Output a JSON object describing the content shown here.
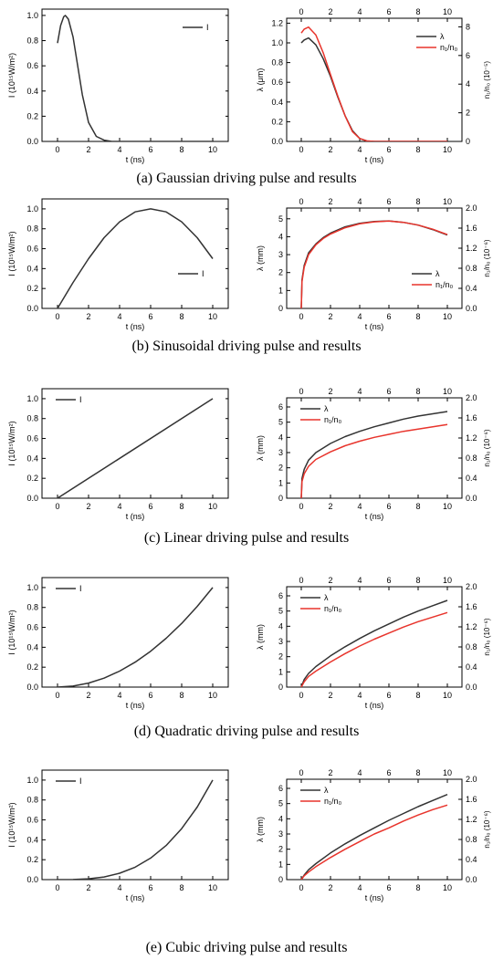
{
  "colors": {
    "lambda": "#333333",
    "ratio": "#e8342c",
    "intensity": "#333333",
    "axis": "#000000"
  },
  "rows": [
    {
      "id": "a",
      "caption": "(a) Gaussian driving pulse and results",
      "left": {
        "type": "line",
        "xlabel": "t (ns)",
        "ylabel": "I (10¹⁵W/m²)",
        "xlim": [
          -1,
          11
        ],
        "ylim": [
          0,
          1.05
        ],
        "xticks": [
          "0",
          "2",
          "4",
          "6",
          "8",
          "10"
        ],
        "yticks": [
          "0.0",
          "0.2",
          "0.4",
          "0.6",
          "0.8",
          "1.0"
        ],
        "legend": [
          "I"
        ],
        "legend_position": "top-right",
        "series": [
          {
            "name": "I",
            "x": [
              0,
              0.2,
              0.4,
              0.5,
              0.7,
              1.0,
              1.3,
              1.6,
              2.0,
              2.5,
              3.0,
              3.5,
              4.0,
              10.0
            ],
            "y": [
              0.78,
              0.92,
              0.99,
              1.0,
              0.97,
              0.83,
              0.6,
              0.37,
              0.15,
              0.04,
              0.01,
              0.0,
              0.0,
              0.0
            ]
          }
        ]
      },
      "right": {
        "type": "line",
        "xlabel": "t (ns)",
        "ylabel": "λ (μm)",
        "y2label": "n₁/n₀ (10⁻⁵)",
        "xlim": [
          -1,
          11
        ],
        "ylim": [
          0,
          1.25
        ],
        "y2lim": [
          0,
          8.6
        ],
        "xticks": [
          "0",
          "2",
          "4",
          "6",
          "8",
          "10"
        ],
        "yticks": [
          "0.0",
          "0.2",
          "0.4",
          "0.6",
          "0.8",
          "1.0",
          "1.2"
        ],
        "y2ticks": [
          "0",
          "2",
          "4",
          "6",
          "8"
        ],
        "legend": [
          "λ",
          "n₁/n₀"
        ],
        "legend_position": "top-right",
        "series": [
          {
            "name": "λ",
            "x": [
              0,
              0.2,
              0.5,
              1.0,
              1.5,
              2.0,
              2.5,
              3.0,
              3.5,
              4.0,
              4.5,
              5.0,
              6.0,
              10.0
            ],
            "y": [
              1.0,
              1.03,
              1.05,
              0.98,
              0.84,
              0.66,
              0.45,
              0.26,
              0.11,
              0.03,
              0.005,
              0.0,
              0.0,
              0.0
            ]
          },
          {
            "name": "n₁/n₀",
            "x": [
              0,
              0.2,
              0.5,
              1.0,
              1.5,
              2.0,
              2.5,
              3.0,
              3.5,
              4.0,
              4.5,
              5.0,
              6.0,
              10.0
            ],
            "y": [
              1.1,
              1.14,
              1.16,
              1.08,
              0.9,
              0.68,
              0.46,
              0.26,
              0.1,
              0.03,
              0.005,
              0.0,
              0.0,
              0.0
            ]
          }
        ]
      }
    },
    {
      "id": "b",
      "caption": "(b) Sinusoidal driving pulse and results",
      "left": {
        "type": "line",
        "xlabel": "t (ns)",
        "ylabel": "I (10¹⁵W/m²)",
        "xlim": [
          -1,
          11
        ],
        "ylim": [
          0,
          1.1
        ],
        "xticks": [
          "0",
          "2",
          "4",
          "6",
          "8",
          "10"
        ],
        "yticks": [
          "0.0",
          "0.2",
          "0.4",
          "0.6",
          "0.8",
          "1.0"
        ],
        "legend": [
          "I"
        ],
        "legend_position": "bottom-right",
        "series": [
          {
            "name": "I",
            "x": [
              0,
              1,
              2,
              3,
              4,
              5,
              6,
              7,
              8,
              9,
              10
            ],
            "y": [
              0.0,
              0.26,
              0.5,
              0.71,
              0.87,
              0.97,
              1.0,
              0.97,
              0.87,
              0.71,
              0.5
            ]
          }
        ]
      },
      "right": {
        "type": "line",
        "xlabel": "t (ns)",
        "ylabel": "λ (mm)",
        "y2label": "n₁/n₀ (10⁻⁶)",
        "xlim": [
          -1,
          11
        ],
        "ylim": [
          0,
          5.6
        ],
        "y2lim": [
          0,
          2.0
        ],
        "xticks": [
          "0",
          "2",
          "4",
          "6",
          "8",
          "10"
        ],
        "yticks": [
          "0",
          "1",
          "2",
          "3",
          "4",
          "5"
        ],
        "y2ticks": [
          "0.0",
          "0.4",
          "0.8",
          "1.2",
          "1.6",
          "2.0"
        ],
        "legend": [
          "λ",
          "n₁/n₀"
        ],
        "legend_position": "bottom-right",
        "series": [
          {
            "name": "λ",
            "x": [
              0,
              0.05,
              0.2,
              0.5,
              1,
              1.5,
              2,
              3,
              4,
              5,
              6,
              7,
              8,
              9,
              10
            ],
            "y": [
              0,
              1.6,
              2.4,
              3.1,
              3.6,
              3.95,
              4.2,
              4.55,
              4.75,
              4.85,
              4.88,
              4.8,
              4.65,
              4.4,
              4.1
            ]
          },
          {
            "name": "n₁/n₀",
            "x": [
              0,
              0.05,
              0.2,
              0.5,
              1,
              1.5,
              2,
              3,
              4,
              5,
              6,
              7,
              8,
              9,
              10
            ],
            "y": [
              0,
              1.5,
              2.3,
              3.0,
              3.55,
              3.9,
              4.15,
              4.5,
              4.72,
              4.83,
              4.87,
              4.8,
              4.65,
              4.42,
              4.12
            ]
          }
        ]
      }
    },
    {
      "id": "c",
      "caption": "(c) Linear driving pulse and results",
      "left": {
        "type": "line",
        "xlabel": "t (ns)",
        "ylabel": "I (10¹⁵W/m²)",
        "xlim": [
          -1,
          11
        ],
        "ylim": [
          0,
          1.1
        ],
        "xticks": [
          "0",
          "2",
          "4",
          "6",
          "8",
          "10"
        ],
        "yticks": [
          "0.0",
          "0.2",
          "0.4",
          "0.6",
          "0.8",
          "1.0"
        ],
        "legend": [
          "I"
        ],
        "legend_position": "top-left",
        "series": [
          {
            "name": "I",
            "x": [
              0,
              10
            ],
            "y": [
              0,
              1.0
            ]
          }
        ]
      },
      "right": {
        "type": "line",
        "xlabel": "t (ns)",
        "ylabel": "λ (mm)",
        "y2label": "n₁/n₀ (10⁻⁶)",
        "xlim": [
          -1,
          11
        ],
        "ylim": [
          0,
          6.6
        ],
        "y2lim": [
          0,
          2.0
        ],
        "xticks": [
          "0",
          "2",
          "4",
          "6",
          "8",
          "10"
        ],
        "yticks": [
          "0",
          "1",
          "2",
          "3",
          "4",
          "5",
          "6"
        ],
        "y2ticks": [
          "0.0",
          "0.4",
          "0.8",
          "1.2",
          "1.6",
          "2.0"
        ],
        "legend": [
          "λ",
          "n₁/n₀"
        ],
        "legend_position": "top-left",
        "series": [
          {
            "name": "λ",
            "x": [
              0,
              0.05,
              0.2,
              0.5,
              1,
              2,
              3,
              4,
              5,
              6,
              7,
              8,
              9,
              10
            ],
            "y": [
              0,
              1.3,
              1.9,
              2.5,
              3.0,
              3.6,
              4.05,
              4.4,
              4.7,
              4.95,
              5.2,
              5.4,
              5.55,
              5.7
            ]
          },
          {
            "name": "n₁/n₀",
            "x": [
              0,
              0.05,
              0.2,
              0.5,
              1,
              2,
              3,
              4,
              5,
              6,
              7,
              8,
              9,
              10
            ],
            "y": [
              0,
              1.1,
              1.6,
              2.1,
              2.55,
              3.05,
              3.45,
              3.75,
              4.0,
              4.2,
              4.4,
              4.55,
              4.7,
              4.85
            ]
          }
        ]
      }
    },
    {
      "id": "d",
      "caption": "(d) Quadratic driving pulse and results",
      "left": {
        "type": "line",
        "xlabel": "t (ns)",
        "ylabel": "I (10¹⁵W/m²)",
        "xlim": [
          -1,
          11
        ],
        "ylim": [
          0,
          1.1
        ],
        "xticks": [
          "0",
          "2",
          "4",
          "6",
          "8",
          "10"
        ],
        "yticks": [
          "0.0",
          "0.2",
          "0.4",
          "0.6",
          "0.8",
          "1.0"
        ],
        "legend": [
          "I"
        ],
        "legend_position": "top-left",
        "series": [
          {
            "name": "I",
            "x": [
              0,
              1,
              2,
              3,
              4,
              5,
              6,
              7,
              8,
              9,
              10
            ],
            "y": [
              0,
              0.01,
              0.04,
              0.09,
              0.16,
              0.25,
              0.36,
              0.49,
              0.64,
              0.81,
              1.0
            ]
          }
        ]
      },
      "right": {
        "type": "line",
        "xlabel": "t (ns)",
        "ylabel": "λ (mm)",
        "y2label": "n₁/n₀ (10⁻⁶)",
        "xlim": [
          -1,
          11
        ],
        "ylim": [
          0,
          6.6
        ],
        "y2lim": [
          0,
          2.0
        ],
        "xticks": [
          "0",
          "2",
          "4",
          "6",
          "8",
          "10"
        ],
        "yticks": [
          "0",
          "1",
          "2",
          "3",
          "4",
          "5",
          "6"
        ],
        "y2ticks": [
          "0.0",
          "0.4",
          "0.8",
          "1.2",
          "1.6",
          "2.0"
        ],
        "legend": [
          "λ",
          "n₁/n₀"
        ],
        "legend_position": "top-left",
        "series": [
          {
            "name": "λ",
            "x": [
              0,
              0.2,
              0.5,
              1,
              2,
              3,
              4,
              5,
              6,
              7,
              8,
              9,
              10
            ],
            "y": [
              0,
              0.5,
              0.9,
              1.35,
              2.05,
              2.65,
              3.2,
              3.7,
              4.15,
              4.6,
              5.0,
              5.35,
              5.7
            ]
          },
          {
            "name": "n₁/n₀",
            "x": [
              0,
              0.2,
              0.5,
              1,
              2,
              3,
              4,
              5,
              6,
              7,
              8,
              9,
              10
            ],
            "y": [
              0,
              0.35,
              0.7,
              1.05,
              1.65,
              2.2,
              2.7,
              3.15,
              3.55,
              3.95,
              4.3,
              4.6,
              4.9
            ]
          }
        ]
      }
    },
    {
      "id": "e",
      "caption": "(e) Cubic driving pulse and results",
      "left": {
        "type": "line",
        "xlabel": "t (ns)",
        "ylabel": "I (10¹⁵W/m²)",
        "xlim": [
          -1,
          11
        ],
        "ylim": [
          0,
          1.1
        ],
        "xticks": [
          "0",
          "2",
          "4",
          "6",
          "8",
          "10"
        ],
        "yticks": [
          "0.0",
          "0.2",
          "0.4",
          "0.6",
          "0.8",
          "1.0"
        ],
        "legend": [
          "I"
        ],
        "legend_position": "top-left",
        "series": [
          {
            "name": "I",
            "x": [
              0,
              1,
              2,
              3,
              4,
              5,
              6,
              7,
              8,
              9,
              10
            ],
            "y": [
              0,
              0.001,
              0.008,
              0.027,
              0.064,
              0.125,
              0.216,
              0.343,
              0.512,
              0.729,
              1.0
            ]
          }
        ]
      },
      "right": {
        "type": "line",
        "xlabel": "t (ns)",
        "ylabel": "λ (mm)",
        "y2label": "n₁/n₀ (10⁻⁶)",
        "xlim": [
          -1,
          11
        ],
        "ylim": [
          0,
          6.6
        ],
        "y2lim": [
          0,
          2.0
        ],
        "xticks": [
          "0",
          "2",
          "4",
          "6",
          "8",
          "10"
        ],
        "yticks": [
          "0",
          "1",
          "2",
          "3",
          "4",
          "5",
          "6"
        ],
        "y2ticks": [
          "0.0",
          "0.4",
          "0.8",
          "1.2",
          "1.6",
          "2.0"
        ],
        "legend": [
          "λ",
          "n₁/n₀"
        ],
        "legend_position": "top-left",
        "series": [
          {
            "name": "λ",
            "x": [
              0,
              0.2,
              0.5,
              1,
              2,
              3,
              4,
              5,
              6,
              7,
              8,
              9,
              10
            ],
            "y": [
              0,
              0.3,
              0.65,
              1.05,
              1.75,
              2.35,
              2.9,
              3.4,
              3.9,
              4.35,
              4.8,
              5.2,
              5.6
            ]
          },
          {
            "name": "n₁/n₀",
            "x": [
              0,
              0.2,
              0.5,
              1,
              2,
              3,
              4,
              5,
              6,
              7,
              8,
              9,
              10
            ],
            "y": [
              0,
              0.25,
              0.5,
              0.85,
              1.45,
              2.0,
              2.5,
              3.0,
              3.4,
              3.85,
              4.25,
              4.6,
              4.9
            ]
          }
        ]
      }
    }
  ]
}
